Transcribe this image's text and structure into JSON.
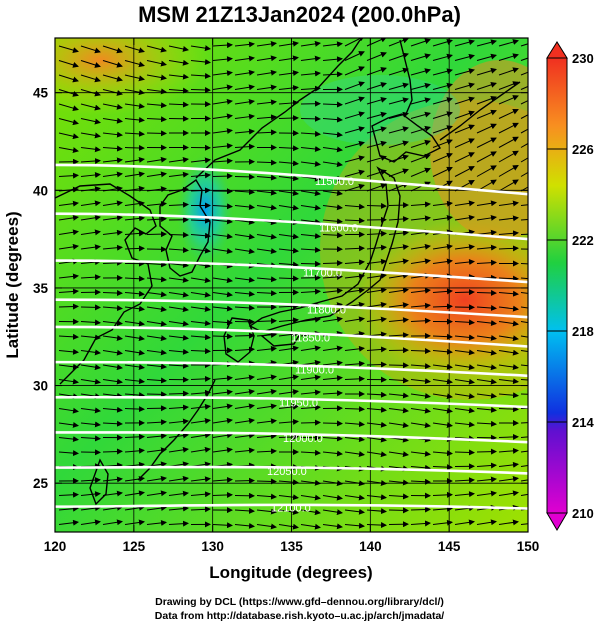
{
  "title": "MSM 21Z13Jan2024 (200.0hPa)",
  "axes": {
    "xlabel": "Longitude (degrees)",
    "ylabel": "Latitude  (degrees)",
    "xlim": [
      120,
      150
    ],
    "ylim": [
      22.5,
      47.8
    ],
    "xticks": [
      120,
      125,
      130,
      135,
      140,
      145,
      150
    ],
    "yticks": [
      25,
      30,
      35,
      40,
      45
    ]
  },
  "colorbar": {
    "min": 210,
    "max": 230,
    "ticks": [
      210,
      214,
      218,
      222,
      226,
      230
    ]
  },
  "contours": [
    {
      "label": "11500.0",
      "lat_west": 41.3,
      "lat_east": 39.8
    },
    {
      "label": "11600.0",
      "lat_west": 38.8,
      "lat_east": 37.5
    },
    {
      "label": "11700.0",
      "lat_west": 36.4,
      "lat_east": 35.3
    },
    {
      "label": "11800.0",
      "lat_west": 34.4,
      "lat_east": 33.5
    },
    {
      "label": "11850.0",
      "lat_west": 33.0,
      "lat_east": 32.0
    },
    {
      "label": "11900.0",
      "lat_west": 31.2,
      "lat_east": 30.5
    },
    {
      "label": "11950.0",
      "lat_west": 29.4,
      "lat_east": 28.9
    },
    {
      "label": "12000.0",
      "lat_west": 27.6,
      "lat_east": 27.1
    },
    {
      "label": "12050.0",
      "lat_west": 25.8,
      "lat_east": 25.5
    },
    {
      "label": "12100.0",
      "lat_west": 23.8,
      "lat_east": 23.7
    }
  ],
  "credits": {
    "line1": "Drawing by DCL (https://www.gfd–dennou.org/library/dcl/)",
    "line2": "Data from http://database.rish.kyoto–u.ac.jp/arch/jmadata/"
  }
}
